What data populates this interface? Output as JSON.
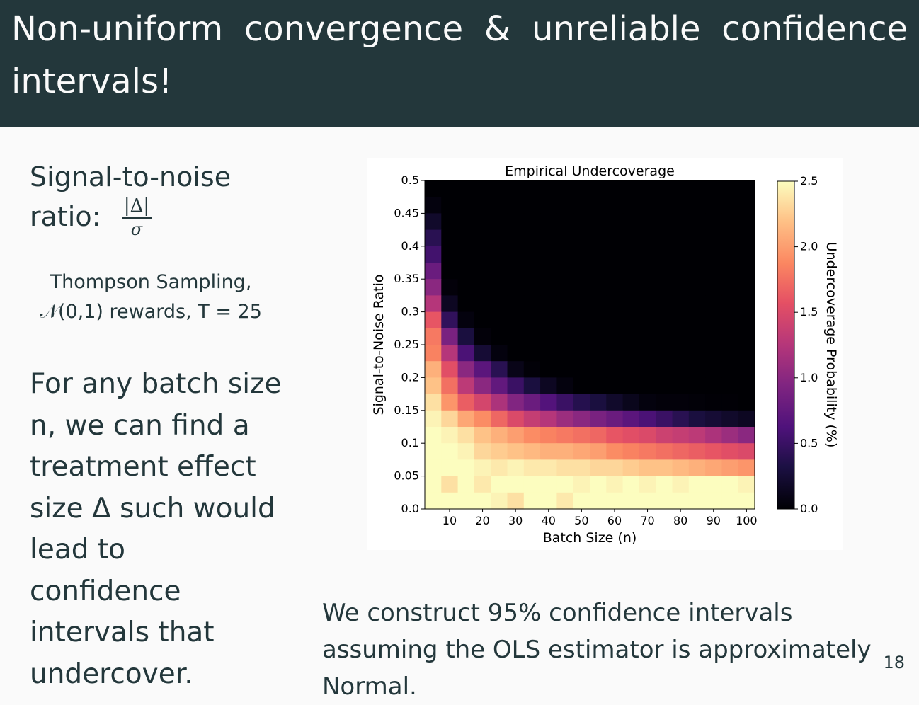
{
  "slide": {
    "title": "Non-uniform convergence & unreliable confidence intervals!",
    "snr_heading": "Signal-to-noise ratio:",
    "snr_fraction": {
      "numerator": "|Δ|",
      "denominator": "σ"
    },
    "setting_line1": "Thompson Sampling,",
    "setting_line2": "𝒩(0,1) rewards, T = 25",
    "body": "For any batch size n, we can find a treatment effect size Δ such would lead to confidence intervals that undercover.",
    "caption": "We construct 95% confidence intervals assuming the OLS estimator is approximately Normal.",
    "page_number": "18"
  },
  "chart_data": {
    "type": "heatmap",
    "title": "Empirical Undercoverage",
    "xlabel": "Batch Size (n)",
    "ylabel": "Signal-to-Noise Ratio",
    "colorbar_label": "Undercoverage Probability (%)",
    "colormap": "magma",
    "x_ticks": [
      "10",
      "20",
      "30",
      "40",
      "50",
      "60",
      "70",
      "80",
      "90",
      "100"
    ],
    "y_ticks": [
      "0.0",
      "0.05",
      "0.1",
      "0.15",
      "0.2",
      "0.25",
      "0.3",
      "0.35",
      "0.4",
      "0.45",
      "0.5"
    ],
    "colorbar_ticks": [
      "0.0",
      "0.5",
      "1.0",
      "1.5",
      "2.0",
      "2.5"
    ],
    "color_range": [
      0,
      2.5
    ],
    "x": [
      5,
      10,
      15,
      20,
      25,
      30,
      35,
      40,
      45,
      50,
      55,
      60,
      65,
      70,
      75,
      80,
      85,
      90,
      95,
      100
    ],
    "y": [
      0.5,
      0.475,
      0.45,
      0.425,
      0.4,
      0.375,
      0.35,
      0.325,
      0.3,
      0.275,
      0.25,
      0.225,
      0.2,
      0.175,
      0.15,
      0.125,
      0.1,
      0.075,
      0.05,
      0.025
    ],
    "z": [
      [
        0,
        0,
        0,
        0,
        0,
        0,
        0,
        0,
        0,
        0,
        0,
        0,
        0,
        0,
        0,
        0,
        0,
        0,
        0,
        0
      ],
      [
        0.05,
        0,
        0,
        0,
        0,
        0,
        0,
        0,
        0,
        0,
        0,
        0,
        0,
        0,
        0,
        0,
        0,
        0,
        0,
        0
      ],
      [
        0.2,
        0,
        0,
        0,
        0,
        0,
        0,
        0,
        0,
        0,
        0,
        0,
        0,
        0,
        0,
        0,
        0,
        0,
        0,
        0
      ],
      [
        0.4,
        0,
        0,
        0,
        0,
        0,
        0,
        0,
        0,
        0,
        0,
        0,
        0,
        0,
        0,
        0,
        0,
        0,
        0,
        0
      ],
      [
        0.55,
        0,
        0,
        0,
        0,
        0,
        0,
        0,
        0,
        0,
        0,
        0,
        0,
        0,
        0,
        0,
        0,
        0,
        0,
        0
      ],
      [
        0.8,
        0,
        0,
        0,
        0,
        0,
        0,
        0,
        0,
        0,
        0,
        0,
        0,
        0,
        0,
        0,
        0,
        0,
        0,
        0
      ],
      [
        1.0,
        0.03,
        0,
        0,
        0,
        0,
        0,
        0,
        0,
        0,
        0,
        0,
        0,
        0,
        0,
        0,
        0,
        0,
        0,
        0
      ],
      [
        1.25,
        0.15,
        0,
        0,
        0,
        0,
        0,
        0,
        0,
        0,
        0,
        0,
        0,
        0,
        0,
        0,
        0,
        0,
        0,
        0
      ],
      [
        1.6,
        0.45,
        0.05,
        0,
        0,
        0,
        0,
        0,
        0,
        0,
        0,
        0,
        0,
        0,
        0,
        0,
        0,
        0,
        0,
        0
      ],
      [
        1.8,
        0.9,
        0.3,
        0.03,
        0,
        0,
        0,
        0,
        0,
        0,
        0,
        0,
        0,
        0,
        0,
        0,
        0,
        0,
        0,
        0
      ],
      [
        1.85,
        1.25,
        0.6,
        0.25,
        0.05,
        0,
        0,
        0,
        0,
        0,
        0,
        0,
        0,
        0,
        0,
        0,
        0,
        0,
        0,
        0
      ],
      [
        2.1,
        1.55,
        1.0,
        0.7,
        0.4,
        0.1,
        0.02,
        0,
        0,
        0,
        0,
        0,
        0,
        0,
        0,
        0,
        0,
        0,
        0,
        0
      ],
      [
        2.2,
        1.75,
        1.3,
        1.0,
        0.75,
        0.5,
        0.3,
        0.15,
        0.05,
        0,
        0,
        0,
        0,
        0,
        0,
        0,
        0,
        0,
        0,
        0
      ],
      [
        2.35,
        1.95,
        1.65,
        1.45,
        1.2,
        0.95,
        0.8,
        0.65,
        0.5,
        0.38,
        0.3,
        0.2,
        0.12,
        0.05,
        0.03,
        0.03,
        0.02,
        0.01,
        0.01,
        0
      ],
      [
        2.45,
        2.3,
        2.05,
        1.9,
        1.7,
        1.5,
        1.35,
        1.25,
        1.1,
        1.0,
        0.9,
        0.8,
        0.7,
        0.6,
        0.5,
        0.4,
        0.3,
        0.25,
        0.2,
        0.15
      ],
      [
        2.5,
        2.45,
        2.35,
        2.2,
        2.1,
        2.0,
        1.9,
        1.85,
        1.8,
        1.75,
        1.7,
        1.6,
        1.55,
        1.5,
        1.4,
        1.35,
        1.3,
        1.2,
        1.1,
        1.0
      ],
      [
        2.5,
        2.5,
        2.45,
        2.3,
        2.25,
        2.2,
        2.15,
        2.1,
        2.1,
        2.05,
        2.0,
        1.9,
        1.85,
        1.8,
        1.75,
        1.7,
        1.65,
        1.6,
        1.55,
        1.5
      ],
      [
        2.5,
        2.5,
        2.5,
        2.45,
        2.4,
        2.45,
        2.4,
        2.4,
        2.35,
        2.35,
        2.3,
        2.3,
        2.25,
        2.2,
        2.2,
        2.15,
        2.1,
        2.05,
        2.0,
        1.95
      ],
      [
        2.5,
        2.35,
        2.5,
        2.4,
        2.5,
        2.5,
        2.5,
        2.5,
        2.5,
        2.45,
        2.5,
        2.45,
        2.5,
        2.45,
        2.5,
        2.45,
        2.5,
        2.5,
        2.5,
        2.45
      ],
      [
        2.5,
        2.5,
        2.5,
        2.5,
        2.45,
        2.35,
        2.5,
        2.5,
        2.4,
        2.5,
        2.5,
        2.5,
        2.5,
        2.5,
        2.5,
        2.5,
        2.5,
        2.5,
        2.5,
        2.5
      ]
    ]
  }
}
